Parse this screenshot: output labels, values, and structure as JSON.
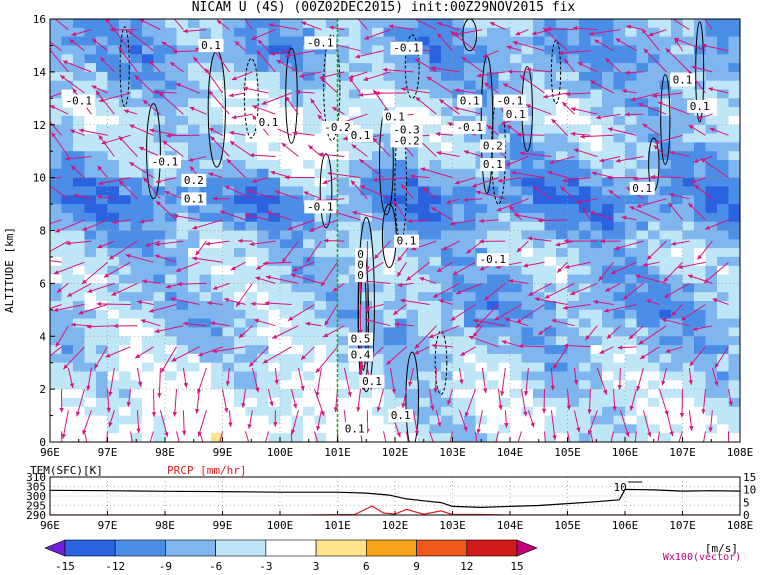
{
  "title": "NICAM U (4S) (00Z02DEC2015) init:00Z29NOV2015 fix",
  "chart_data": [
    {
      "type": "heatmap",
      "panel": "main",
      "ylabel": "ALTITUDE [km]",
      "xlabel": "",
      "x_ticks": [
        "96E",
        "97E",
        "98E",
        "99E",
        "100E",
        "101E",
        "102E",
        "103E",
        "104E",
        "105E",
        "106E",
        "107E",
        "108E"
      ],
      "y_ticks": [
        "0",
        "2",
        "4",
        "6",
        "8",
        "10",
        "12",
        "14",
        "16"
      ],
      "xlim": [
        96,
        108
      ],
      "ylim": [
        0,
        16
      ],
      "grid": true,
      "marker_line_lon": 101,
      "contour_labels": [
        {
          "text": "0.1",
          "lon": 98.8,
          "alt": 14.9
        },
        {
          "text": "-0.1",
          "lon": 100.7,
          "alt": 15.0
        },
        {
          "text": "-0.1",
          "lon": 102.2,
          "alt": 14.8
        },
        {
          "text": "-0.1",
          "lon": 96.5,
          "alt": 12.8
        },
        {
          "text": "0.1",
          "lon": 99.8,
          "alt": 12.0
        },
        {
          "text": "-0.2",
          "lon": 101.0,
          "alt": 11.8
        },
        {
          "text": "0.1",
          "lon": 101.4,
          "alt": 11.5
        },
        {
          "text": "-0.1",
          "lon": 98.0,
          "alt": 10.5
        },
        {
          "text": "0.2",
          "lon": 98.5,
          "alt": 9.8
        },
        {
          "text": "0.1",
          "lon": 98.5,
          "alt": 9.1
        },
        {
          "text": "-0.1",
          "lon": 100.7,
          "alt": 8.8
        },
        {
          "text": "0.1",
          "lon": 102.2,
          "alt": 7.5
        },
        {
          "text": "-0.1",
          "lon": 103.7,
          "alt": 6.8
        },
        {
          "text": "0.1",
          "lon": 102.0,
          "alt": 12.2
        },
        {
          "text": "-0.3",
          "lon": 102.2,
          "alt": 11.7
        },
        {
          "text": "-0.2",
          "lon": 102.2,
          "alt": 11.3
        },
        {
          "text": "-0.1",
          "lon": 103.3,
          "alt": 11.8
        },
        {
          "text": "0.1",
          "lon": 103.3,
          "alt": 12.8
        },
        {
          "text": "0.1",
          "lon": 103.7,
          "alt": 10.4
        },
        {
          "text": "0.2",
          "lon": 103.7,
          "alt": 11.1
        },
        {
          "text": "-0.1",
          "lon": 104.0,
          "alt": 12.8
        },
        {
          "text": "0.1",
          "lon": 104.1,
          "alt": 12.3
        },
        {
          "text": "0.1",
          "lon": 107.0,
          "alt": 13.6
        },
        {
          "text": "0.1",
          "lon": 107.3,
          "alt": 12.6
        },
        {
          "text": "0.1",
          "lon": 106.3,
          "alt": 9.5
        },
        {
          "text": "0.5",
          "lon": 101.4,
          "alt": 3.8
        },
        {
          "text": "0.4",
          "lon": 101.4,
          "alt": 3.2
        },
        {
          "text": "0.1",
          "lon": 101.6,
          "alt": 2.2
        },
        {
          "text": "0.1",
          "lon": 101.3,
          "alt": 0.4
        },
        {
          "text": "0.1",
          "lon": 102.1,
          "alt": 0.9
        },
        {
          "text": "0",
          "lon": 101.4,
          "alt": 7.0
        },
        {
          "text": "0",
          "lon": 101.4,
          "alt": 6.6
        },
        {
          "text": "0",
          "lon": 101.4,
          "alt": 6.2
        }
      ]
    },
    {
      "type": "line",
      "panel": "surface",
      "legend": [
        "TEM(SFC)[K]",
        "PRCP [mm/hr]"
      ],
      "x_ticks": [
        "96E",
        "97E",
        "98E",
        "99E",
        "100E",
        "101E",
        "102E",
        "103E",
        "104E",
        "105E",
        "106E",
        "107E",
        "108E"
      ],
      "left_ticks": [
        "310",
        "305",
        "300",
        "295",
        "290"
      ],
      "right_ticks": [
        "15",
        "10",
        "5",
        "0"
      ],
      "ylim_left": [
        290,
        310
      ],
      "ylim_right": [
        0,
        15
      ],
      "series": [
        {
          "name": "TEM(SFC)[K]",
          "color": "#000000",
          "x": [
            96,
            97,
            98,
            99,
            100,
            101,
            101.5,
            101.9,
            102.2,
            102.5,
            102.8,
            103,
            103.5,
            104,
            104.5,
            105,
            105.5,
            105.9,
            106,
            106.5,
            107,
            107.5,
            108
          ],
          "y": [
            303,
            302.8,
            302.5,
            302.3,
            302,
            302,
            301.5,
            300.5,
            298.5,
            297.5,
            296.5,
            294.5,
            294,
            294.5,
            295,
            296,
            297,
            298,
            303.5,
            303.2,
            302.6,
            302.8,
            302.6
          ]
        },
        {
          "name": "PRCP [mm/hr]",
          "color": "#e02020",
          "x": [
            96,
            100.5,
            101.3,
            101.6,
            101.8,
            102,
            102.2,
            102.5,
            102.8,
            103,
            103.5,
            104,
            105,
            106,
            108
          ],
          "y": [
            0,
            0,
            0.2,
            3.5,
            0.8,
            0.4,
            2.2,
            0.3,
            1.6,
            0.2,
            0.2,
            0,
            0,
            0,
            0
          ]
        }
      ],
      "annotation": "10"
    },
    {
      "type": "colorbar",
      "levels": [
        "-15",
        "-12",
        "-9",
        "-6",
        "-3",
        "3",
        "6",
        "9",
        "12",
        "15"
      ],
      "colors": [
        "#6f1fd8",
        "#2a62e0",
        "#4b8ee8",
        "#7fb6f0",
        "#bfe6f6",
        "#ffffff",
        "#fde48a",
        "#f7a318",
        "#ef5a1a",
        "#d11a1a",
        "#c0007a"
      ],
      "unit": "[m/s]",
      "vector_label": "Wx100(vector)"
    }
  ]
}
